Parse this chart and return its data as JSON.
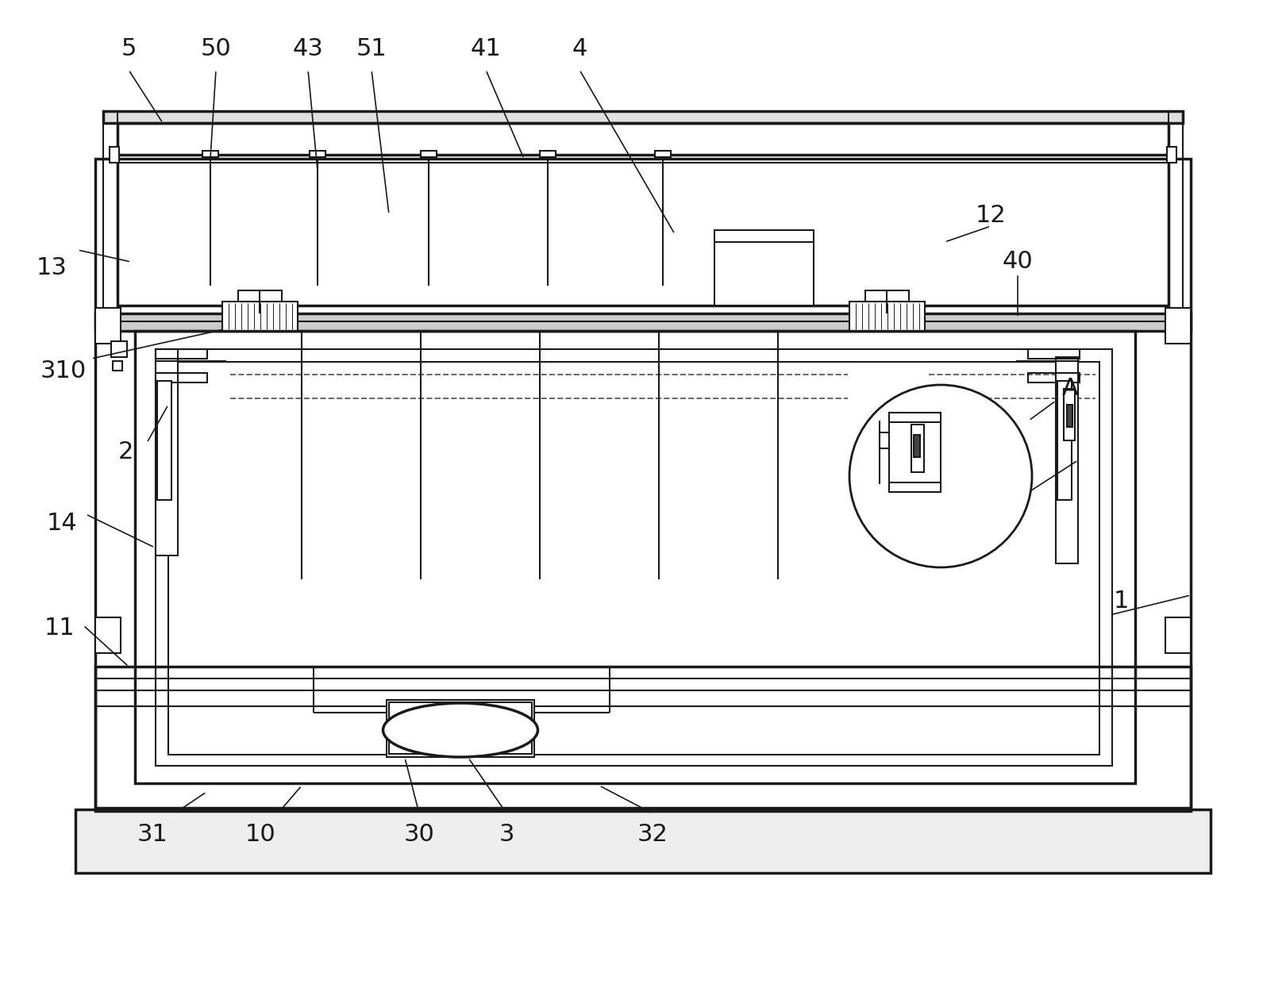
{
  "bg_color": "#ffffff",
  "line_color": "#1a1a1a",
  "line_width": 1.5,
  "thick_line": 2.5,
  "label_fontsize": 22,
  "label_color": "#1a1a1a"
}
